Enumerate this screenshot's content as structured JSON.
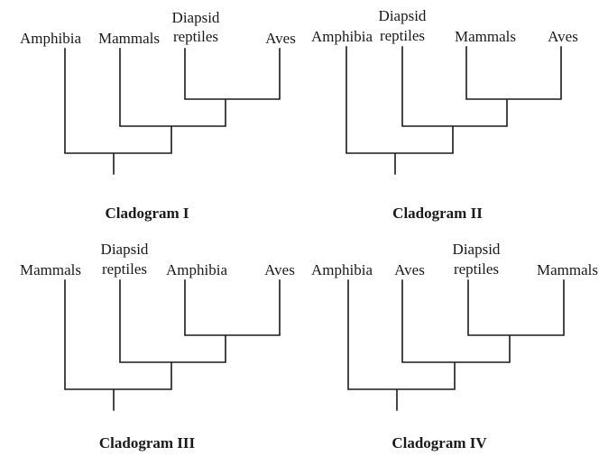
{
  "cladograms": [
    {
      "title": "Cladogram I",
      "taxa": [
        {
          "lines": [
            "Amphibia"
          ]
        },
        {
          "lines": [
            "Mammals"
          ]
        },
        {
          "lines": [
            "Diapsid",
            "reptiles"
          ]
        },
        {
          "lines": [
            "Aves"
          ]
        }
      ]
    },
    {
      "title": "Cladogram II",
      "taxa": [
        {
          "lines": [
            "Amphibia"
          ]
        },
        {
          "lines": [
            "Diapsid",
            "reptiles"
          ]
        },
        {
          "lines": [
            "Mammals"
          ]
        },
        {
          "lines": [
            "Aves"
          ]
        }
      ]
    },
    {
      "title": "Cladogram III",
      "taxa": [
        {
          "lines": [
            "Mammals"
          ]
        },
        {
          "lines": [
            "Diapsid",
            "reptiles"
          ]
        },
        {
          "lines": [
            "Amphibia"
          ]
        },
        {
          "lines": [
            "Aves"
          ]
        }
      ]
    },
    {
      "title": "Cladogram IV",
      "taxa": [
        {
          "lines": [
            "Amphibia"
          ]
        },
        {
          "lines": [
            "Aves"
          ]
        },
        {
          "lines": [
            "Diapsid",
            "reptiles"
          ]
        },
        {
          "lines": [
            "Mammals"
          ]
        }
      ]
    }
  ]
}
